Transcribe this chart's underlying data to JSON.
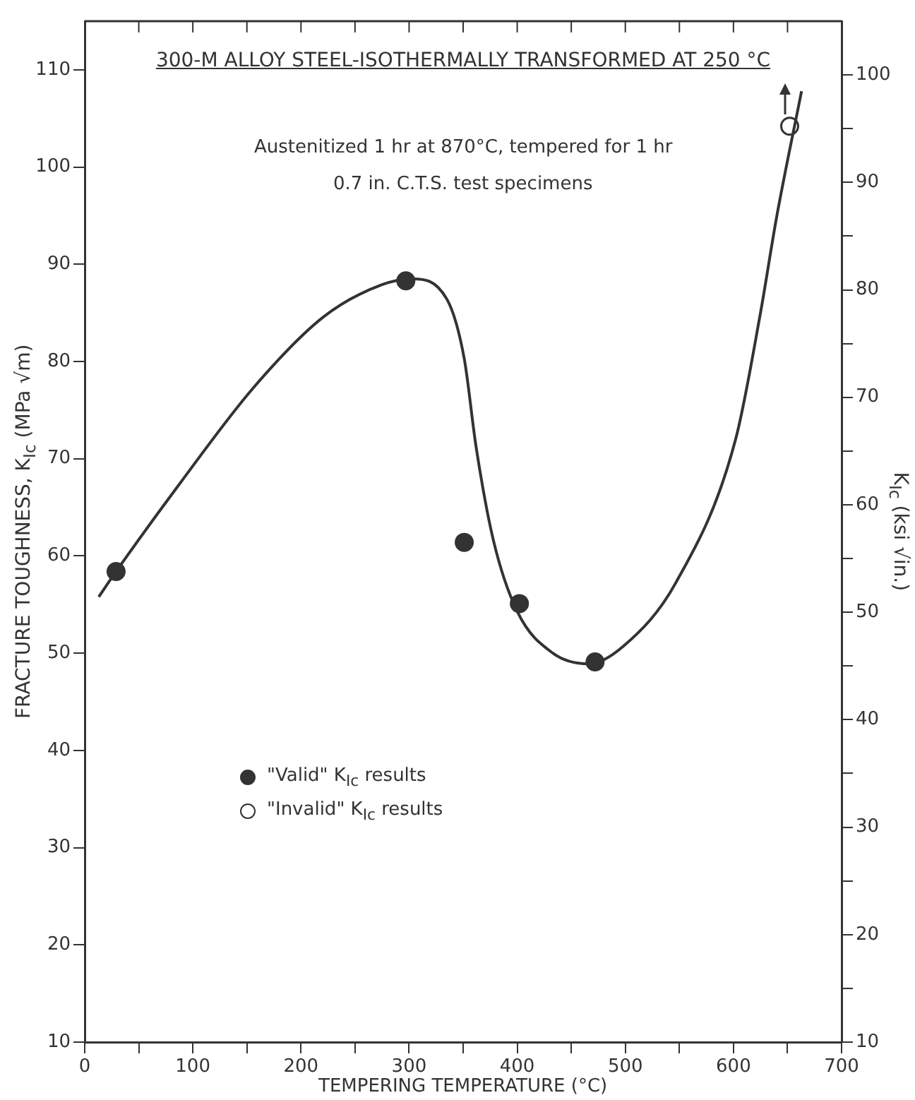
{
  "chart_data": {
    "type": "line",
    "title": "300-M ALLOY STEEL-ISOTHERMALLY TRANSFORMED AT 250 °C",
    "subtitle": "Austenitized 1 hr at 870°C, tempered for 1 hr",
    "annotations": [
      "0.7 in. C.T.S. test specimens"
    ],
    "xlabel": "TEMPERING TEMPERATURE (°C)",
    "ylabel": "FRACTURE TOUGHNESS,  K$_{Ic}$ (MPa √m)",
    "y2label": "K$_{Ic}$ (ksi √in.)",
    "series": [
      {
        "type": "line",
        "color": "#333333",
        "marker": "none",
        "x": [
          13,
          29,
          85,
          156,
          221,
          275,
          303,
          335,
          351,
          362,
          378,
          400,
          433,
          466,
          498,
          547,
          602,
          625,
          640,
          663
        ],
        "values": [
          55.8,
          58.4,
          67.0,
          77.3,
          84.6,
          87.9,
          88.5,
          86.4,
          80.3,
          71.2,
          61.6,
          54.3,
          50.0,
          48.9,
          50.7,
          57.3,
          72,
          85,
          94.9,
          107.8
        ]
      },
      {
        "type": "scatter",
        "name": "\"Valid\" K$_{Ic}$ results",
        "color": "#333333",
        "marker": "circle",
        "x": [
          29,
          297,
          351,
          402,
          472
        ],
        "values": [
          58.4,
          88.3,
          61.4,
          55.1,
          49.1
        ]
      },
      {
        "type": "scatter",
        "name": "\"Invalid\" K$_{Ic}$ results",
        "color": "#ffffff",
        "marker": "circle",
        "x": [
          652
        ],
        "values": [
          104.2
        ]
      }
    ],
    "xlim": [
      0,
      700
    ],
    "xticks": [
      0,
      {
        "value": 50,
        "label": null
      },
      100,
      {
        "value": 150,
        "label": null
      },
      200,
      {
        "value": 250,
        "label": null
      },
      300,
      {
        "value": 350,
        "label": null
      },
      400,
      {
        "value": 450,
        "label": null
      },
      500,
      {
        "value": 550,
        "label": null
      },
      600,
      {
        "value": 650,
        "label": null
      },
      700
    ],
    "ylim": [
      10,
      115
    ],
    "yticks": [
      10,
      20,
      30,
      40,
      50,
      60,
      70,
      80,
      90,
      100,
      110
    ],
    "y2lim": [
      10,
      105
    ],
    "y2ticks": [
      10,
      {
        "value": 15,
        "label": null
      },
      20,
      {
        "value": 25,
        "label": null
      },
      30,
      {
        "value": 35,
        "label": null
      },
      40,
      {
        "value": 45,
        "label": null
      },
      50,
      {
        "value": 55,
        "label": null
      },
      60,
      {
        "value": 65,
        "label": null
      },
      70,
      {
        "value": 75,
        "label": null
      },
      80,
      {
        "value": 85,
        "label": null
      },
      90,
      {
        "value": 95,
        "label": null
      },
      100
    ],
    "grid": false,
    "legend": "left"
  }
}
